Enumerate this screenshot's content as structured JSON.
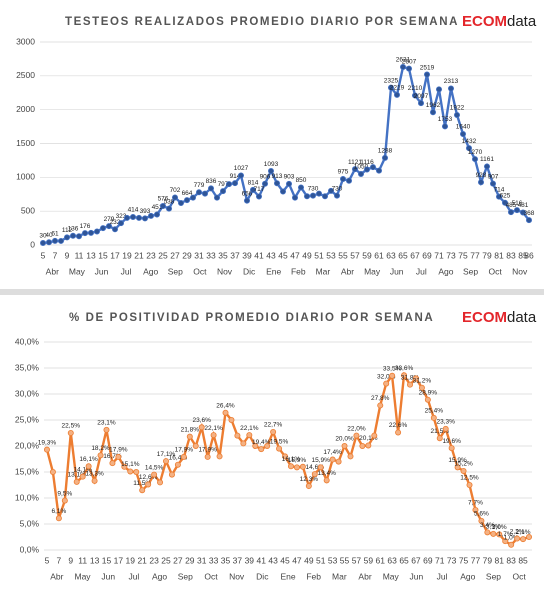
{
  "logo": {
    "brand": "ECOM",
    "suffix": "data"
  },
  "chart_data": [
    {
      "type": "line",
      "title": "TESTEOS REALIZADOS  PROMEDIO DIARIO POR SEMANA",
      "color": "#4472c4",
      "marker_color": "#2f5597",
      "grid": true,
      "categories": [
        "5",
        null,
        "7",
        null,
        "9",
        null,
        "11",
        null,
        "13",
        null,
        "15",
        null,
        "17",
        null,
        "19",
        null,
        "21",
        null,
        "23",
        null,
        "25",
        null,
        "27",
        null,
        "29",
        null,
        "31",
        null,
        "33",
        null,
        "35",
        null,
        "37",
        null,
        "39",
        null,
        "41",
        null,
        "43",
        null,
        "45",
        null,
        "47",
        null,
        "49",
        null,
        "51",
        null,
        "53",
        null,
        "55",
        null,
        "57",
        null,
        "59",
        null,
        "61",
        null,
        "63",
        null,
        "65",
        null,
        "67",
        null,
        "69",
        null,
        "71",
        null,
        "73",
        null,
        "75",
        null,
        "77",
        null,
        "79",
        null,
        "81",
        null,
        "83",
        null,
        "85",
        "86"
      ],
      "x_groups": [
        "Abr",
        "May",
        "Jun",
        "Jul",
        "Ago",
        "Sep",
        "Oct",
        "Nov",
        "Dic",
        "Ene",
        "Feb",
        "Mar",
        "Abr",
        "May",
        "Jun",
        "Jul",
        "Ago",
        "Sep",
        "Oct",
        "Nov"
      ],
      "values": [
        30,
        40,
        61,
        60,
        112,
        136,
        130,
        176,
        180,
        200,
        250,
        279,
        232,
        323,
        400,
        414,
        400,
        393,
        430,
        451,
        576,
        538,
        702,
        620,
        664,
        700,
        779,
        760,
        836,
        700,
        797,
        900,
        914,
        1027,
        656,
        814,
        717,
        906,
        1093,
        913,
        790,
        903,
        700,
        850,
        720,
        730,
        760,
        720,
        800,
        730,
        975,
        950,
        1121,
        1050,
        1116,
        1150,
        1100,
        1288,
        2325,
        2219,
        2631,
        2607,
        2210,
        2097,
        2519,
        1962,
        2300,
        1753,
        2313,
        1922,
        1640,
        1432,
        1270,
        928,
        1161,
        907,
        714,
        625,
        485,
        516,
        481,
        368
      ],
      "value_labels": [
        "30",
        "40",
        "61",
        null,
        "112",
        "136",
        null,
        "176",
        null,
        null,
        null,
        "279",
        "232",
        "323",
        null,
        "414",
        null,
        "393",
        null,
        "451",
        "576",
        "538",
        "702",
        null,
        "664",
        null,
        "779",
        null,
        "836",
        null,
        "797",
        null,
        "914",
        "1027",
        "656",
        "814",
        "717",
        "906",
        "1093",
        "913",
        null,
        "903",
        null,
        "850",
        null,
        "730",
        null,
        null,
        null,
        "730",
        "975",
        null,
        "1121",
        "1050",
        "1116",
        null,
        null,
        "1288",
        "2325",
        "2219",
        "2631",
        "2607",
        "2210",
        "2097",
        "2519",
        "1962",
        null,
        "1753",
        "2313",
        "1922",
        "1640",
        "1432",
        "1270",
        "928",
        "1161",
        "907",
        "714",
        "625",
        "485",
        "516",
        "481",
        "368"
      ],
      "ylim": [
        0,
        3000
      ],
      "yticks": [
        0,
        500,
        1000,
        1500,
        2000,
        2500,
        3000
      ]
    },
    {
      "type": "line",
      "title": "% DE POSITIVIDAD PROMEDIO DIARIO POR SEMANA",
      "color": "#ed7d31",
      "marker_color": "#f4b183",
      "grid": true,
      "categories": [
        "5",
        null,
        "7",
        null,
        "9",
        null,
        "11",
        null,
        "13",
        null,
        "15",
        null,
        "17",
        null,
        "19",
        null,
        "21",
        null,
        "23",
        null,
        "25",
        null,
        "27",
        null,
        "29",
        null,
        "31",
        null,
        "33",
        null,
        "35",
        null,
        "37",
        null,
        "39",
        null,
        "41",
        null,
        "43",
        null,
        "45",
        null,
        "47",
        null,
        "49",
        null,
        "51",
        null,
        "53",
        null,
        "55",
        null,
        "57",
        null,
        "59",
        null,
        "61",
        null,
        "63",
        null,
        "65",
        null,
        "67",
        null,
        "69",
        null,
        "71",
        null,
        "73",
        null,
        "75",
        null,
        "77",
        null,
        "79",
        null,
        "81",
        null,
        "83",
        null,
        "85",
        null
      ],
      "x_groups": [
        "Abr",
        "May",
        "Jun",
        "Jul",
        "Ago",
        "Sep",
        "Oct",
        "Nov",
        "Dic",
        "Ene",
        "Feb",
        "Mar",
        "Abr",
        "May",
        "Jun",
        "Jul",
        "Ago",
        "Sep",
        "Oct"
      ],
      "values": [
        19.3,
        15,
        6.1,
        9.5,
        22.5,
        13.1,
        14.1,
        16.1,
        13.3,
        18.2,
        23.1,
        16.7,
        17.9,
        16,
        15.1,
        15,
        11.5,
        12.6,
        14.5,
        13,
        17.1,
        14.5,
        16.4,
        17.9,
        21.8,
        20,
        23.6,
        17.9,
        22.1,
        18,
        26.4,
        25,
        22,
        20.5,
        22.1,
        20,
        19.4,
        20,
        22.7,
        19.5,
        18,
        16.1,
        15.9,
        16,
        12.3,
        14.6,
        15.9,
        13.4,
        17.4,
        17,
        20,
        18,
        22,
        20,
        20.1,
        22,
        27.8,
        32,
        33.5,
        22.6,
        33.6,
        31.8,
        33,
        31.2,
        28.9,
        25.4,
        21.5,
        23.3,
        19.6,
        15.9,
        15.2,
        12.5,
        7.7,
        5.6,
        3.4,
        3.1,
        3,
        1.7,
        1,
        2.2,
        2.1,
        2.5
      ],
      "value_labels": [
        "19,3%",
        null,
        "6,1%",
        "9,5%",
        "22,5%",
        "13,1%",
        "14,1%",
        "16,1%",
        "13,3%",
        "18,2%",
        "23,1%",
        "16,7%",
        "17,9%",
        null,
        "15,1%",
        null,
        "11,5%",
        "12,6%",
        "14,5%",
        null,
        "17,1%",
        null,
        "16,4%",
        "17,9%",
        "21,8%",
        null,
        "23,6%",
        "17,9%",
        "22,1%",
        null,
        "26,4%",
        null,
        null,
        null,
        "22,1%",
        null,
        "19,4%",
        null,
        "22,7%",
        "19,5%",
        null,
        "16,1%",
        "15,9%",
        null,
        "12,3%",
        "14,6%",
        "15,9%",
        "13,4%",
        "17,4%",
        null,
        "20,0%",
        null,
        "22,0%",
        null,
        "20,1%",
        null,
        "27,8%",
        "32,0%",
        "33,5%",
        "22,6%",
        "33,6%",
        "31,8%",
        null,
        "31,2%",
        "28,9%",
        "25,4%",
        "21,5%",
        "23,3%",
        "19,6%",
        "15,9%",
        "15,2%",
        "12,5%",
        "7,7%",
        "5,6%",
        "3,4%",
        "3,1%",
        "3,0%",
        "1,7%",
        "1,0%",
        "2,2%",
        "2,1%",
        null
      ],
      "ylim": [
        0,
        40
      ],
      "yticks": [
        {
          "value": 0,
          "label": "0,0%"
        },
        {
          "value": 5,
          "label": "5,0%"
        },
        {
          "value": 10,
          "label": "10,0%"
        },
        {
          "value": 15,
          "label": "15,0%"
        },
        {
          "value": 20,
          "label": "20,0%"
        },
        {
          "value": 25,
          "label": "25,0%"
        },
        {
          "value": 30,
          "label": "30,0%"
        },
        {
          "value": 35,
          "label": "35,0%"
        },
        {
          "value": 40,
          "label": "40,0%"
        }
      ]
    }
  ]
}
